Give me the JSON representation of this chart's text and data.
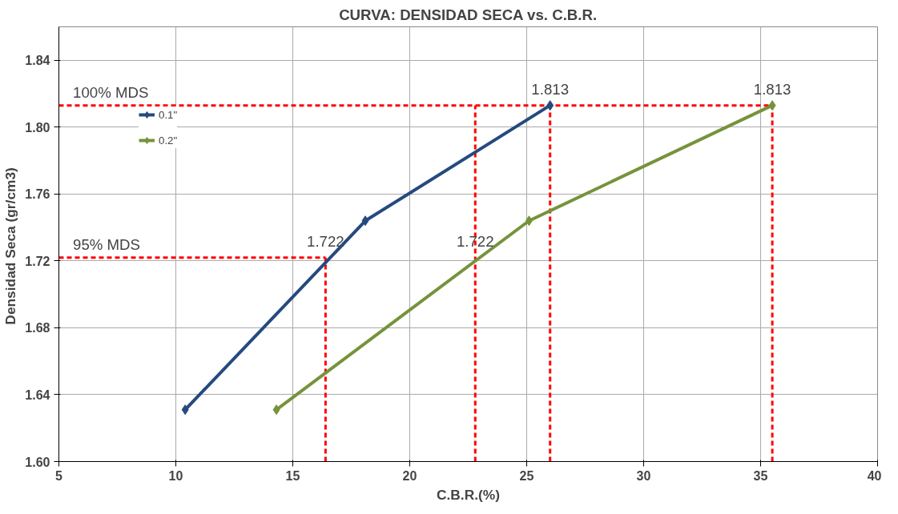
{
  "chart_data": {
    "type": "line",
    "title": "CURVA: DENSIDAD SECA vs. C.B.R.",
    "xlabel": "C.B.R.(%)",
    "ylabel": "Densidad  Seca (gr/cm3)",
    "series": [
      {
        "name": "0.1\"",
        "color": "#254a7e",
        "x": [
          10.4,
          18.1,
          26.0
        ],
        "values": [
          1.631,
          1.744,
          1.813
        ]
      },
      {
        "name": "0.2\"",
        "color": "#76933c",
        "x": [
          14.3,
          25.1,
          35.5
        ],
        "values": [
          1.631,
          1.744,
          1.813
        ]
      }
    ],
    "xlim": [
      5,
      40
    ],
    "xticks": [
      5,
      10,
      15,
      20,
      25,
      30,
      35,
      40
    ],
    "ylim": [
      1.6,
      1.86
    ],
    "yticks": [
      {
        "value": 1.6,
        "label": "1.60"
      },
      {
        "value": 1.64,
        "label": "1.64"
      },
      {
        "value": 1.68,
        "label": "1.68"
      },
      {
        "value": 1.72,
        "label": "1.72"
      },
      {
        "value": 1.76,
        "label": "1.76"
      },
      {
        "value": 1.8,
        "label": "1.80"
      },
      {
        "value": 1.84,
        "label": "1.84"
      }
    ],
    "ref_lines": [
      {
        "axis": "y",
        "value": 1.813,
        "label": "100% MDS",
        "color": "#ff0000",
        "line_style": "dashed"
      },
      {
        "axis": "y",
        "value": 1.722,
        "label": "95% MDS",
        "color": "#ff0000",
        "line_style": "dashed"
      },
      {
        "axis": "x",
        "value": 16.4,
        "label": null,
        "color": "#ff0000",
        "line_style": "dashed"
      },
      {
        "axis": "x",
        "value": 22.8,
        "label": null,
        "color": "#ff0000",
        "line_style": "dashed"
      },
      {
        "axis": "x",
        "value": 26.0,
        "label": null,
        "color": "#ff0000",
        "line_style": "dashed"
      },
      {
        "axis": "x",
        "value": 35.5,
        "label": null,
        "color": "#ff0000",
        "line_style": "dashed"
      }
    ],
    "annotations": [
      {
        "text": "1.813",
        "x": 26.0,
        "y": 1.813
      },
      {
        "text": "1.813",
        "x": 35.5,
        "y": 1.813
      },
      {
        "text": "1.722",
        "x": 16.4,
        "y": 1.722
      },
      {
        "text": "1.722",
        "x": 22.8,
        "y": 1.722
      }
    ],
    "grid": true,
    "legend": "top left",
    "marker": "diamond",
    "line_style": "solid"
  }
}
